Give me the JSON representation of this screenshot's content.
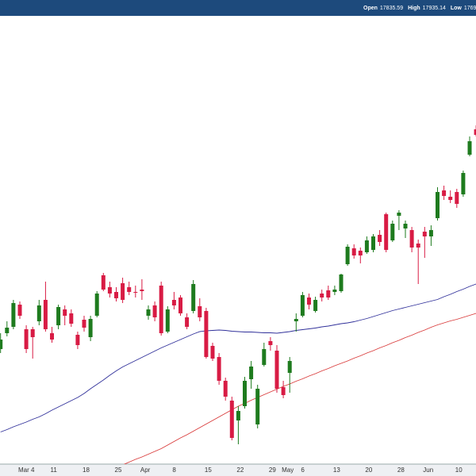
{
  "chart_data": {
    "type": "candlestick",
    "header": {
      "labels": [
        "Open",
        "High",
        "Low"
      ],
      "values": [
        "17835.59",
        "17935.14",
        "1769"
      ]
    },
    "categories": [
      null,
      null,
      null,
      "Mar 4",
      null,
      null,
      null,
      null,
      "11",
      null,
      null,
      null,
      null,
      "18",
      null,
      null,
      null,
      null,
      "25",
      null,
      null,
      null,
      "Apr",
      null,
      null,
      null,
      null,
      "8",
      null,
      null,
      null,
      null,
      "15",
      null,
      null,
      null,
      null,
      "22",
      null,
      null,
      null,
      null,
      "29",
      null,
      "May",
      null,
      null,
      "6",
      null,
      null,
      null,
      null,
      "13",
      null,
      null,
      null,
      null,
      "20",
      null,
      null,
      null,
      null,
      "28",
      null,
      null,
      null,
      "Jun",
      null,
      null,
      null,
      null,
      "10",
      null,
      null,
      null
    ],
    "open": [
      17290,
      17330,
      17346,
      17402,
      17340,
      17340,
      17360,
      17414,
      17330,
      17350,
      17390,
      17380,
      17326,
      17364,
      17320,
      17374,
      17476,
      17446,
      17434,
      17456,
      17446,
      17434,
      17440,
      17374,
      17400,
      17450,
      17334,
      17414,
      17420,
      17370,
      17386,
      17398,
      17386,
      17298,
      17270,
      17210,
      17160,
      17110,
      17146,
      17214,
      17100,
      17250,
      17310,
      17286,
      17194,
      17230,
      17360,
      17374,
      17420,
      17386,
      17430,
      17438,
      17434,
      17436,
      17504,
      17544,
      17538,
      17534,
      17540,
      17578,
      17630,
      17564,
      17626,
      17594,
      17590,
      17556,
      17586,
      17574,
      17620,
      17690,
      17674,
      17686,
      17680,
      17780,
      17844
    ],
    "high": [
      17330,
      17360,
      17414,
      17410,
      17350,
      17346,
      17414,
      17460,
      17346,
      17402,
      17400,
      17390,
      17334,
      17374,
      17374,
      17436,
      17482,
      17460,
      17446,
      17470,
      17460,
      17450,
      17466,
      17400,
      17410,
      17460,
      17398,
      17434,
      17426,
      17380,
      17464,
      17418,
      17394,
      17306,
      17280,
      17218,
      17170,
      17146,
      17220,
      17260,
      17200,
      17306,
      17320,
      17300,
      17210,
      17270,
      17380,
      17434,
      17430,
      17422,
      17440,
      17450,
      17450,
      17480,
      17554,
      17554,
      17546,
      17574,
      17580,
      17590,
      17634,
      17614,
      17640,
      17614,
      17598,
      17566,
      17598,
      17602,
      17698,
      17702,
      17690,
      17694,
      17740,
      17826,
      17854
    ],
    "low": [
      17280,
      17322,
      17340,
      17366,
      17280,
      17266,
      17350,
      17334,
      17306,
      17340,
      17350,
      17346,
      17290,
      17334,
      17310,
      17370,
      17436,
      17420,
      17410,
      17406,
      17426,
      17420,
      17414,
      17364,
      17360,
      17324,
      17330,
      17390,
      17374,
      17340,
      17380,
      17360,
      17266,
      17260,
      17200,
      17160,
      17060,
      17050,
      17140,
      17190,
      17090,
      17246,
      17286,
      17180,
      17166,
      17180,
      17334,
      17370,
      17390,
      17382,
      17410,
      17414,
      17426,
      17432,
      17500,
      17518,
      17506,
      17530,
      17534,
      17550,
      17534,
      17560,
      17590,
      17570,
      17534,
      17454,
      17520,
      17550,
      17614,
      17666,
      17658,
      17646,
      17674,
      17776,
      17826
    ],
    "close": [
      17314,
      17344,
      17406,
      17374,
      17290,
      17320,
      17400,
      17340,
      17314,
      17396,
      17374,
      17354,
      17300,
      17344,
      17366,
      17430,
      17440,
      17430,
      17418,
      17414,
      17434,
      17432,
      17436,
      17390,
      17370,
      17330,
      17390,
      17400,
      17380,
      17346,
      17454,
      17370,
      17270,
      17266,
      17210,
      17170,
      17066,
      17134,
      17210,
      17246,
      17190,
      17290,
      17300,
      17190,
      17174,
      17260,
      17366,
      17426,
      17402,
      17414,
      17420,
      17420,
      17440,
      17478,
      17548,
      17526,
      17526,
      17564,
      17574,
      17560,
      17540,
      17606,
      17634,
      17606,
      17546,
      17546,
      17574,
      17590,
      17686,
      17676,
      17666,
      17656,
      17734,
      17814,
      17830
    ],
    "up_color": "#1e7b1e",
    "down_color": "#d81b44",
    "overlays": [
      {
        "color": "#30309a",
        "values": [
          17081,
          17087,
          17094,
          17100,
          17106,
          17113,
          17119,
          17127,
          17136,
          17144,
          17152,
          17160,
          17168,
          17178,
          17190,
          17201,
          17212,
          17224,
          17235,
          17245,
          17253,
          17261,
          17269,
          17277,
          17285,
          17293,
          17300,
          17307,
          17314,
          17321,
          17328,
          17334,
          17336,
          17337,
          17338,
          17337,
          17335,
          17334,
          17333,
          17333,
          17332,
          17331,
          17331,
          17330,
          17332,
          17334,
          17337,
          17339,
          17341,
          17343,
          17346,
          17348,
          17351,
          17354,
          17356,
          17359,
          17363,
          17367,
          17372,
          17377,
          17382,
          17387,
          17391,
          17395,
          17399,
          17403,
          17407,
          17411,
          17415,
          17422,
          17428,
          17435,
          17441,
          17448,
          17454
        ]
      },
      {
        "color": "#d93a3a",
        "values": [
          null,
          null,
          null,
          null,
          null,
          null,
          null,
          null,
          null,
          null,
          null,
          null,
          null,
          null,
          null,
          null,
          null,
          null,
          16991,
          16998,
          17005,
          17012,
          17018,
          17025,
          17032,
          17039,
          17048,
          17057,
          17066,
          17074,
          17083,
          17092,
          17101,
          17110,
          17119,
          17128,
          17137,
          17146,
          17153,
          17161,
          17168,
          17175,
          17182,
          17189,
          17196,
          17202,
          17209,
          17215,
          17222,
          17228,
          17235,
          17241,
          17248,
          17254,
          17260,
          17267,
          17273,
          17280,
          17286,
          17293,
          17299,
          17306,
          17312,
          17319,
          17325,
          17332,
          17338,
          17345,
          17351,
          17356,
          17361,
          17365,
          17370,
          17375,
          17380
        ]
      }
    ],
    "ylim": [
      17000,
      18130
    ]
  }
}
